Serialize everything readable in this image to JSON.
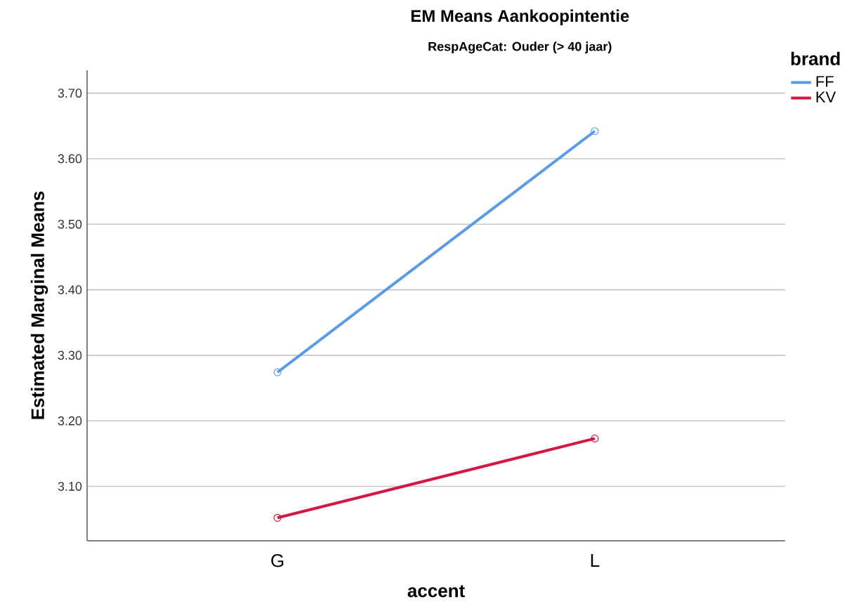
{
  "chart_data": {
    "type": "line",
    "title": "EM Means Aankoopintentie",
    "subtitle": "RespAgeCat: Ouder (> 40 jaar)",
    "xlabel": "accent",
    "ylabel": "Estimated Marginal Means",
    "legend_title": "brand",
    "categories": [
      "G",
      "L"
    ],
    "series": [
      {
        "name": "FF",
        "color": "#5b9be6",
        "values": [
          3.274,
          3.642
        ]
      },
      {
        "name": "KV",
        "color": "#d6173f",
        "values": [
          3.052,
          3.173
        ]
      }
    ],
    "ylim": [
      3.017,
      3.735
    ],
    "yticks": [
      {
        "value": 3.1,
        "label": "3.10"
      },
      {
        "value": 3.2,
        "label": "3.20"
      },
      {
        "value": 3.3,
        "label": "3.30"
      },
      {
        "value": 3.4,
        "label": "3.40"
      },
      {
        "value": 3.5,
        "label": "3.50"
      },
      {
        "value": 3.6,
        "label": "3.60"
      },
      {
        "value": 3.7,
        "label": "3.70"
      }
    ],
    "grid": "y",
    "legend": "top right",
    "marker": "circle",
    "line_style": "solid"
  }
}
